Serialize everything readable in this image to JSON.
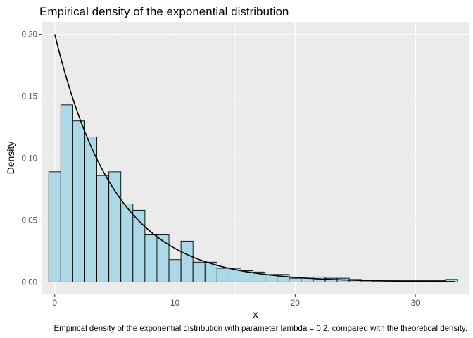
{
  "chart_data": {
    "type": "bar",
    "title": "Empirical density of the exponential distribution",
    "xlabel": "x",
    "ylabel": "Density",
    "caption": "Empirical density of the exponential distribution with parameter lambda = 0.2, compared with the theoretical density.",
    "xlim": [
      -1.1,
      34.5
    ],
    "ylim": [
      -0.01,
      0.21
    ],
    "x_ticks": [
      0,
      10,
      20,
      30
    ],
    "x_tick_labels": [
      "0",
      "10",
      "20",
      "30"
    ],
    "y_ticks": [
      0.0,
      0.05,
      0.1,
      0.15,
      0.2
    ],
    "y_tick_labels": [
      "0.00",
      "0.05",
      "0.10",
      "0.15",
      "0.20"
    ],
    "grid": true,
    "bar_fill": "#add8e6",
    "bar_edge": "#000000",
    "panel_bg": "#ebebeb",
    "histogram": {
      "bin_width": 1,
      "bin_start": -0.5,
      "values": [
        0.089,
        0.143,
        0.13,
        0.117,
        0.086,
        0.089,
        0.063,
        0.058,
        0.038,
        0.038,
        0.018,
        0.033,
        0.016,
        0.016,
        0.011,
        0.011,
        0.009,
        0.008,
        0.006,
        0.006,
        0.003,
        0.003,
        0.004,
        0.003,
        0.003,
        0.002,
        0.001,
        0.001,
        0.001,
        0.001,
        0.001,
        0.001,
        0.001,
        0.002
      ]
    },
    "theoretical_density": {
      "name": "theoretical density",
      "lambda": 0.2,
      "x_from": 0,
      "x_to": 33.3,
      "color": "#000000"
    }
  }
}
